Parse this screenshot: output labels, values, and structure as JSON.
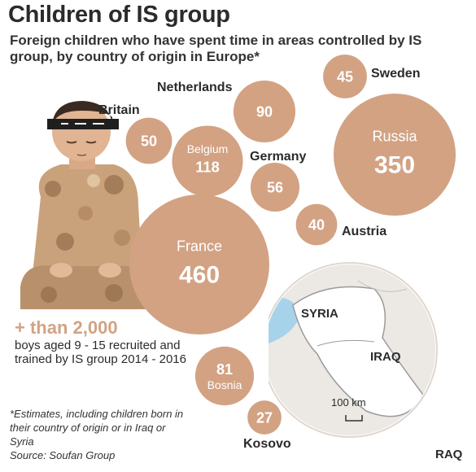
{
  "header": {
    "title": "Children of IS group",
    "subtitle": "Foreign children who have spent time in areas controlled by IS group, by country of origin in Europe*"
  },
  "stat": {
    "big": "+ than 2,000",
    "text": "boys aged 9 - 15 recruited and trained by IS group 2014 - 2016"
  },
  "footnote": {
    "note": "*Estimates, including children born in their country of origin or in Iraq or Syria",
    "source": "Source: Soufan Group"
  },
  "map": {
    "labels": [
      "SYRIA",
      "IRAQ",
      "RAQ"
    ],
    "scale": "100 km"
  },
  "colors": {
    "bubble": "#d2a283",
    "stat": "#d2a283",
    "text": "#2b2b2b"
  },
  "icons": [
    "boy-illustration",
    "map-inset"
  ],
  "chart_data": {
    "type": "bubble",
    "categories": [
      "France",
      "Russia",
      "Belgium",
      "Netherlands",
      "Germany",
      "Britain",
      "Sweden",
      "Austria",
      "Bosnia",
      "Kosovo"
    ],
    "values": [
      460,
      350,
      118,
      90,
      56,
      50,
      45,
      40,
      81,
      27
    ],
    "label_position": [
      "inside",
      "inside",
      "inside",
      "outside",
      "outside",
      "outside",
      "outside",
      "outside",
      "inside",
      "outside"
    ]
  }
}
